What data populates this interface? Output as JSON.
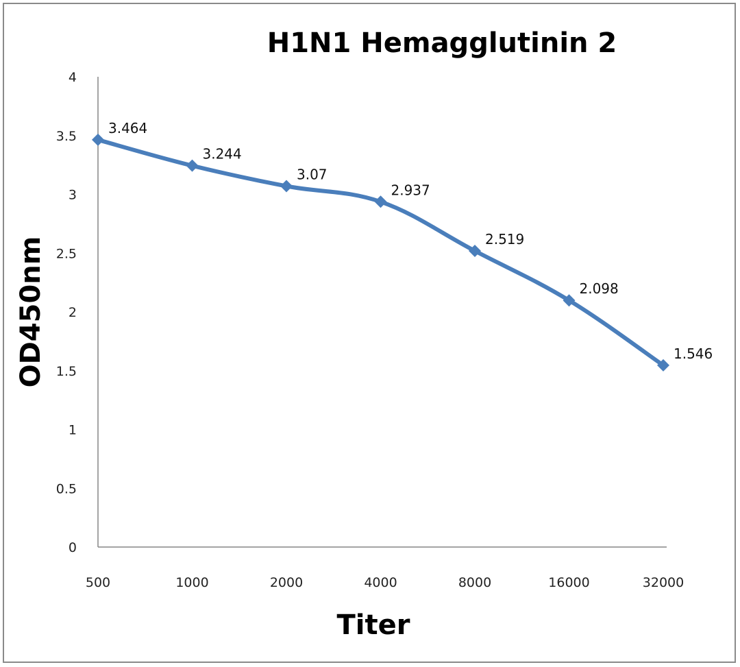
{
  "chart_data": {
    "type": "line",
    "title": "H1N1 Hemagglutinin 2",
    "xlabel": "Titer",
    "ylabel": "OD450nm",
    "categories": [
      "500",
      "1000",
      "2000",
      "4000",
      "8000",
      "16000",
      "32000"
    ],
    "series": [
      {
        "name": "OD450nm",
        "color": "#4a7ebb",
        "values": [
          3.464,
          3.244,
          3.07,
          2.937,
          2.519,
          2.098,
          1.546
        ],
        "data_labels": [
          "3.464",
          "3.244",
          "3.07",
          "2.937",
          "2.519",
          "2.098",
          "1.546"
        ]
      }
    ],
    "ylim": [
      0,
      4
    ],
    "y_ticks": [
      "0",
      "0.5",
      "1",
      "1.5",
      "2",
      "2.5",
      "3",
      "3.5",
      "4"
    ],
    "grid": false,
    "legend": "none",
    "marker": "diamond"
  }
}
